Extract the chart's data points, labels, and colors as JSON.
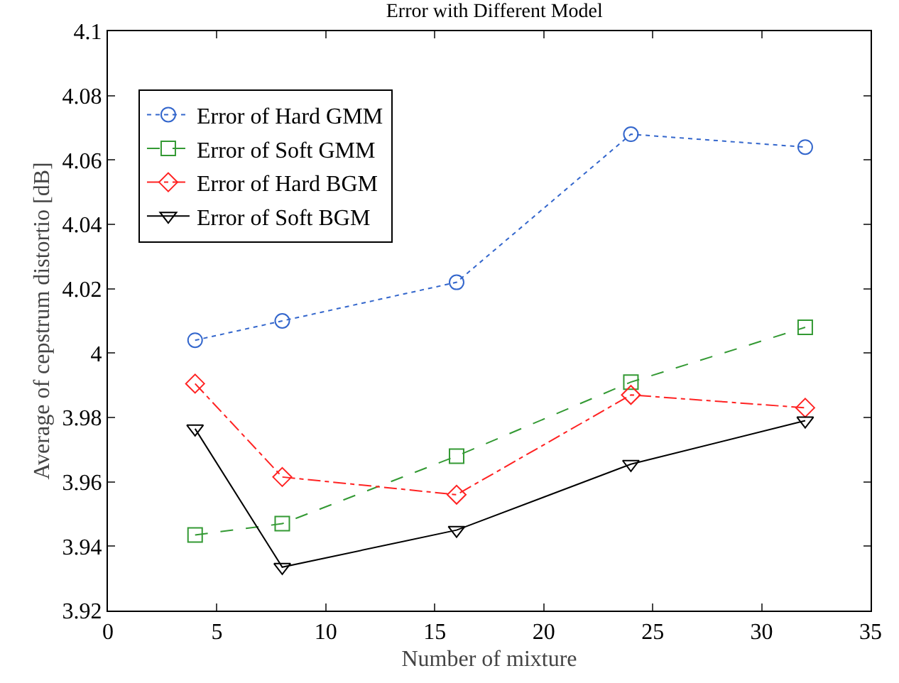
{
  "chart_data": {
    "type": "line",
    "title": "Error with Different Model",
    "xlabel": "Number of mixture",
    "ylabel": "Average of cepstrum distortio [dB]",
    "x": [
      4,
      8,
      16,
      24,
      32
    ],
    "series": [
      {
        "name": "Error of Hard GMM",
        "color": "#3366cc",
        "values": [
          4.004,
          4.01,
          4.022,
          4.068,
          4.064
        ],
        "marker": "circle",
        "line_style": "dotted"
      },
      {
        "name": "Error of Soft GMM",
        "color": "#339933",
        "values": [
          3.9435,
          3.947,
          3.968,
          3.991,
          4.008
        ],
        "marker": "square",
        "line_style": "dashed"
      },
      {
        "name": "Error of Hard BGM",
        "color": "#ff2222",
        "values": [
          3.9905,
          3.9615,
          3.956,
          3.987,
          3.983
        ],
        "marker": "diamond",
        "line_style": "dashdot"
      },
      {
        "name": "Error of Soft BGM",
        "color": "#000000",
        "values": [
          3.9765,
          3.9335,
          3.945,
          3.9655,
          3.979
        ],
        "marker": "triangle",
        "line_style": "solid"
      }
    ],
    "xlim": [
      0,
      35
    ],
    "xticks": [
      0,
      5,
      10,
      15,
      20,
      25,
      30,
      35
    ],
    "ylim": [
      3.92,
      4.1
    ],
    "yticks": [
      3.92,
      3.94,
      3.96,
      3.98,
      4,
      4.02,
      4.04,
      4.06,
      4.08,
      4.1
    ],
    "grid": false,
    "legend": "top left"
  }
}
